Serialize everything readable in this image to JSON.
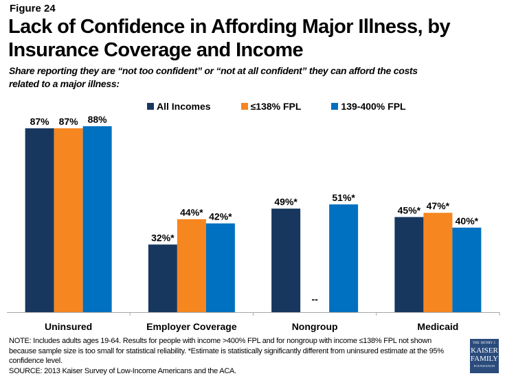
{
  "figure_label": "Figure 24",
  "notes": {
    "note": "NOTE: Includes adults ages 19-64. Results for people with income >400% FPL and for nongroup with income ≤138% FPL not shown because sample size is too small for statistical reliability. *Estimate is statistically significantly different from uninsured estimate at the 95% confidence level.",
    "source": "SOURCE: 2013 Kaiser Survey of Low-Income Americans and the ACA."
  },
  "logo": {
    "line1": "THE HENRY J.",
    "line2": "KAISER",
    "line3": "FAMILY",
    "line4": "FOUNDATION"
  },
  "chart_data": {
    "type": "bar",
    "title": "Lack of Confidence in Affording Major Illness, by Insurance Coverage and  Income",
    "subtitle": "Share reporting they are “not too confident” or “not at all confident” they can afford the costs related to a major illness:",
    "xlabel": "",
    "ylabel": "",
    "ylim": [
      0,
      100
    ],
    "grid": false,
    "legend_position": "top-right",
    "categories": [
      "Uninsured",
      "Employer Coverage",
      "Nongroup",
      "Medicaid"
    ],
    "series": [
      {
        "name": "All Incomes",
        "color": "#17375e",
        "values": [
          87,
          32,
          49,
          45
        ],
        "labels": [
          "87%",
          "32%*",
          "49%*",
          "45%*"
        ]
      },
      {
        "name": "≤138% FPL",
        "color": "#f6861f",
        "values": [
          87,
          44,
          null,
          47
        ],
        "labels": [
          "87%",
          "44%*",
          "--",
          "47%*"
        ]
      },
      {
        "name": "139-400% FPL",
        "color": "#0070c0",
        "values": [
          88,
          42,
          51,
          40
        ],
        "labels": [
          "88%",
          "42%*",
          "51%*",
          "40%*"
        ]
      }
    ]
  }
}
